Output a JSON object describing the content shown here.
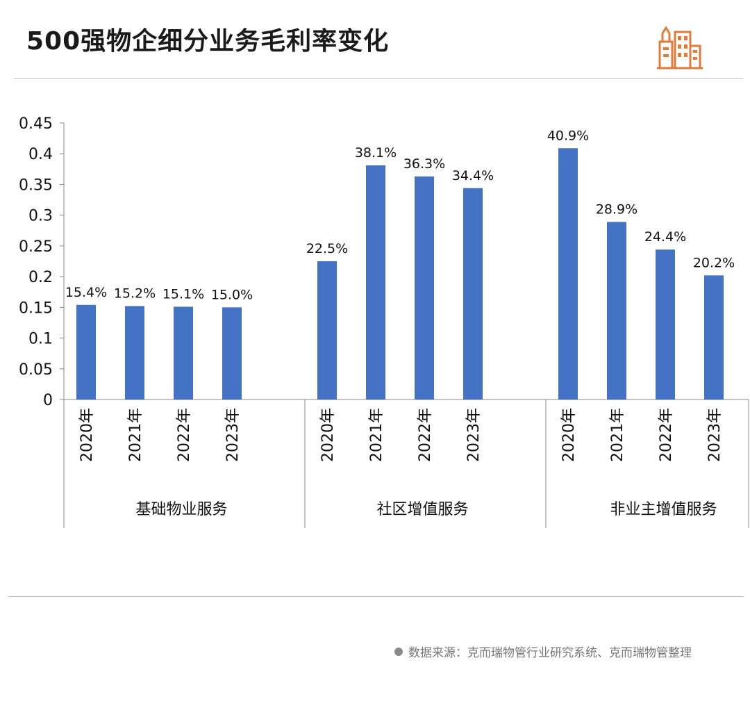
{
  "title": "500强物企细分业务毛利率变化",
  "footer": {
    "source": "数据来源：克而瑞物管行业研究系统、克而瑞物管整理"
  },
  "colors": {
    "bar": "#4472C4",
    "axis": "#888888",
    "logo": "#E07B39"
  },
  "logo_icon": "city-buildings-icon",
  "chart_data": {
    "type": "bar",
    "title": "500强物企细分业务毛利率变化",
    "ylim": [
      0,
      0.45
    ],
    "yticks": [
      "0",
      "0.05",
      "0.1",
      "0.15",
      "0.2",
      "0.25",
      "0.3",
      "0.35",
      "0.4",
      "0.45"
    ],
    "grid": false,
    "legend": "none",
    "groups": [
      {
        "name": "基础物业服务",
        "categories": [
          "2020年",
          "2021年",
          "2022年",
          "2023年"
        ],
        "values": [
          0.154,
          0.152,
          0.151,
          0.15
        ],
        "labels": [
          "15.4%",
          "15.2%",
          "15.1%",
          "15.0%"
        ]
      },
      {
        "name": "社区增值服务",
        "categories": [
          "2020年",
          "2021年",
          "2022年",
          "2023年"
        ],
        "values": [
          0.225,
          0.381,
          0.363,
          0.344
        ],
        "labels": [
          "22.5%",
          "38.1%",
          "36.3%",
          "34.4%"
        ]
      },
      {
        "name": "非业主增值服务",
        "categories": [
          "2020年",
          "2021年",
          "2022年",
          "2023年"
        ],
        "values": [
          0.409,
          0.289,
          0.244,
          0.202
        ],
        "labels": [
          "40.9%",
          "28.9%",
          "24.4%",
          "20.2%"
        ]
      }
    ]
  }
}
